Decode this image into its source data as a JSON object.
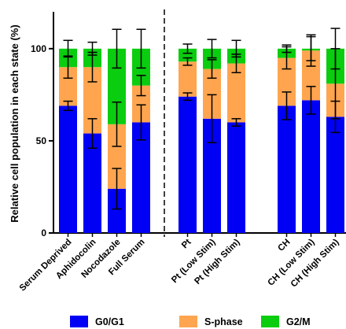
{
  "chart_data": {
    "type": "bar",
    "stacked": true,
    "ylabel": "Relative cell population in each state (%)",
    "ylim": [
      0,
      120
    ],
    "yticks": [
      0,
      50,
      100
    ],
    "grid": false,
    "legend_position": "bottom",
    "divider_after_category": "Full Serum",
    "categories": [
      "Serum Deprived",
      "Aphidocolin",
      "Nocodazole",
      "Full Serum",
      "Pt",
      "Pt (Low Stim)",
      "Pt (High Stim)",
      "CH",
      "CH (Low Stim)",
      "CH (High Stim)"
    ],
    "groups": [
      [
        0,
        1,
        2,
        3
      ],
      [
        4,
        5,
        6
      ],
      [
        7,
        8,
        9
      ]
    ],
    "series": [
      {
        "name": "G0/G1",
        "color": "#0000f5",
        "values": [
          69,
          54,
          24,
          60,
          74,
          62,
          60,
          69,
          72,
          63
        ],
        "error": [
          2.5,
          8,
          11,
          9.5,
          2,
          13,
          2,
          7.5,
          7.5,
          8.5
        ]
      },
      {
        "name": "S-phase",
        "color": "#ffa54f",
        "values": [
          21,
          36,
          35,
          20,
          19,
          27,
          32,
          26,
          27,
          18
        ],
        "error": [
          6,
          8,
          12,
          5.5,
          2,
          5,
          5,
          6,
          8.5,
          19
        ]
      },
      {
        "name": "G2/M",
        "color": "#0acd0f",
        "values": [
          10,
          10,
          41,
          20,
          7,
          11,
          8,
          5,
          1,
          19
        ],
        "error": [
          4.5,
          3.5,
          10.5,
          10.5,
          2.5,
          5,
          4.5,
          2,
          6.5,
          11
        ]
      }
    ]
  }
}
